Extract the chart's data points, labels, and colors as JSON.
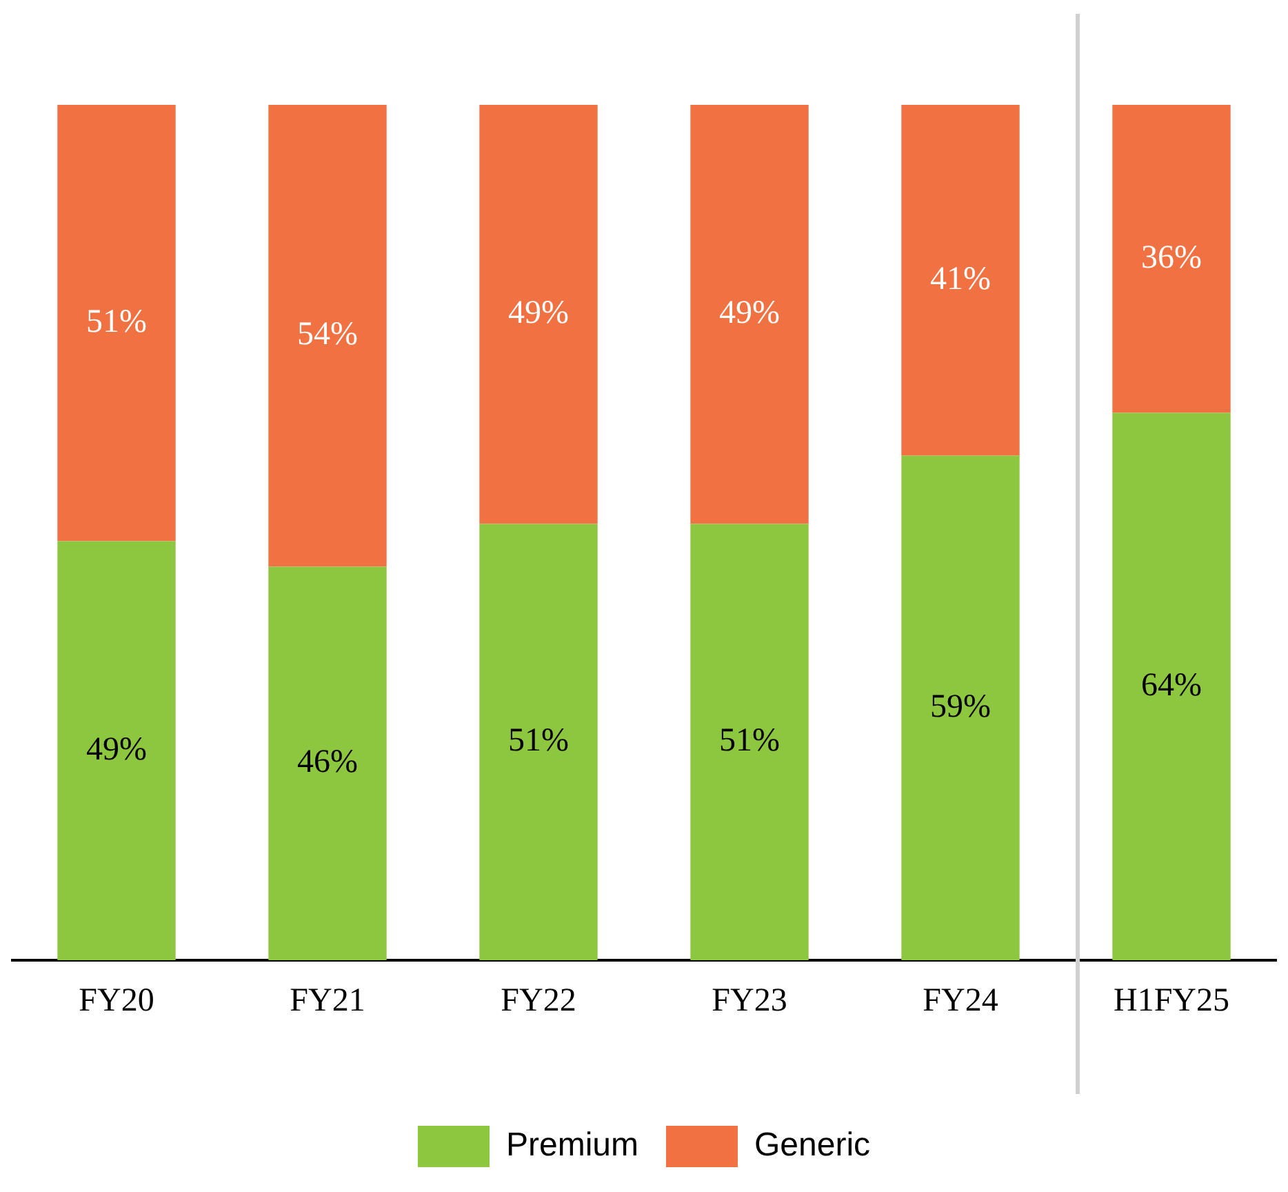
{
  "chart_data": {
    "type": "bar",
    "stacked": true,
    "legend": "bottom",
    "grid": false,
    "categories": [
      "FY20",
      "FY21",
      "FY22",
      "FY23",
      "FY24",
      "H1FY25"
    ],
    "series": [
      {
        "name": "Premium",
        "color": "#8dc63f",
        "values": [
          49,
          46,
          51,
          51,
          59,
          64
        ],
        "value_labels": [
          "49%",
          "46%",
          "51%",
          "51%",
          "59%",
          "64%"
        ]
      },
      {
        "name": "Generic",
        "color": "#f07142",
        "values": [
          51,
          54,
          49,
          49,
          41,
          36
        ],
        "value_labels": [
          "51%",
          "54%",
          "49%",
          "49%",
          "41%",
          "36%"
        ]
      }
    ]
  }
}
